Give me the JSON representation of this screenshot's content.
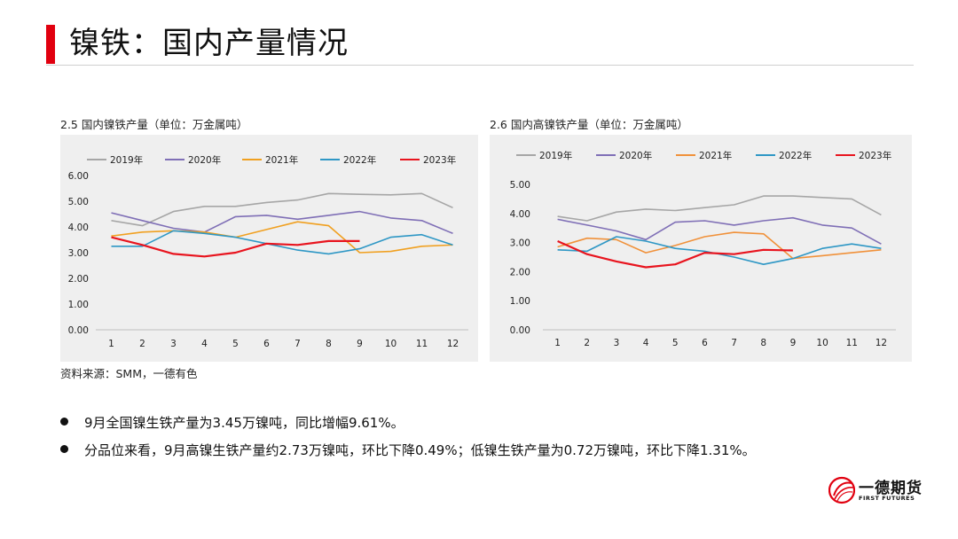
{
  "page": {
    "title": "镍铁：国内产量情况"
  },
  "charts": [
    {
      "label": "2.5 国内镍铁产量（单位：万金属吨）"
    },
    {
      "label": "2.6 国内高镍铁产量（单位：万金属吨）"
    }
  ],
  "source": "资料来源：SMM，一德有色",
  "bullets": [
    "9月全国镍生铁产量为3.45万镍吨，同比增幅9.61%。",
    "分品位来看，9月高镍生铁产量约2.73万镍吨，环比下降0.49%；低镍生铁产量为0.72万镍吨，环比下降1.31%。"
  ],
  "logo": {
    "name_cn": "一德期货",
    "name_en": "FIRST FUTURES"
  },
  "colors": {
    "accent": "#e1000f"
  },
  "chart_data": [
    {
      "type": "line",
      "title": "2.5 国内镍铁产量（单位：万金属吨）",
      "x": [
        "1",
        "2",
        "3",
        "4",
        "5",
        "6",
        "7",
        "8",
        "9",
        "10",
        "11",
        "12"
      ],
      "ylim": [
        0,
        6
      ],
      "yticks": [
        "0.00",
        "1.00",
        "2.00",
        "3.00",
        "4.00",
        "5.00",
        "6.00"
      ],
      "legend_position": "top",
      "grid": false,
      "series": [
        {
          "name": "2019年",
          "color": "#a6a6a6",
          "values": [
            4.25,
            4.05,
            4.6,
            4.8,
            4.8,
            4.95,
            5.05,
            5.3,
            5.27,
            5.25,
            5.3,
            4.75
          ]
        },
        {
          "name": "2020年",
          "color": "#7f6fb6",
          "values": [
            4.55,
            4.25,
            3.95,
            3.8,
            4.4,
            4.45,
            4.3,
            4.45,
            4.6,
            4.35,
            4.25,
            3.75
          ]
        },
        {
          "name": "2021年",
          "color": "#f0a020",
          "values": [
            3.65,
            3.8,
            3.85,
            3.8,
            3.6,
            3.9,
            4.2,
            4.05,
            3.0,
            3.05,
            3.25,
            3.3
          ]
        },
        {
          "name": "2022年",
          "color": "#2e97c5",
          "values": [
            3.25,
            3.25,
            3.85,
            3.75,
            3.6,
            3.35,
            3.1,
            2.95,
            3.15,
            3.6,
            3.7,
            3.3
          ]
        },
        {
          "name": "2023年",
          "color": "#e8141e",
          "values": [
            3.6,
            3.3,
            2.95,
            2.85,
            3.0,
            3.35,
            3.3,
            3.45,
            3.45,
            null,
            null,
            null
          ]
        }
      ]
    },
    {
      "type": "line",
      "title": "2.6 国内高镍铁产量（单位：万金属吨）",
      "x": [
        "1",
        "2",
        "3",
        "4",
        "5",
        "6",
        "7",
        "8",
        "9",
        "10",
        "11",
        "12"
      ],
      "ylim": [
        0,
        5
      ],
      "yticks": [
        "0.00",
        "1.00",
        "2.00",
        "3.00",
        "4.00",
        "5.00"
      ],
      "legend_position": "top",
      "grid": false,
      "series": [
        {
          "name": "2019年",
          "color": "#a6a6a6",
          "values": [
            3.9,
            3.75,
            4.05,
            4.15,
            4.1,
            4.2,
            4.3,
            4.6,
            4.6,
            4.55,
            4.5,
            3.95
          ]
        },
        {
          "name": "2020年",
          "color": "#7f6fb6",
          "values": [
            3.8,
            3.6,
            3.4,
            3.1,
            3.7,
            3.75,
            3.6,
            3.75,
            3.85,
            3.6,
            3.5,
            2.95
          ]
        },
        {
          "name": "2021年",
          "color": "#f0913a",
          "values": [
            2.85,
            3.15,
            3.1,
            2.65,
            2.9,
            3.2,
            3.35,
            3.3,
            2.45,
            2.55,
            2.65,
            2.75
          ]
        },
        {
          "name": "2022年",
          "color": "#2e97c5",
          "values": [
            2.75,
            2.7,
            3.2,
            3.05,
            2.8,
            2.7,
            2.5,
            2.25,
            2.45,
            2.8,
            2.95,
            2.8
          ]
        },
        {
          "name": "2023年",
          "color": "#e8141e",
          "values": [
            3.05,
            2.6,
            2.35,
            2.15,
            2.25,
            2.65,
            2.6,
            2.75,
            2.73,
            null,
            null,
            null
          ]
        }
      ]
    }
  ]
}
